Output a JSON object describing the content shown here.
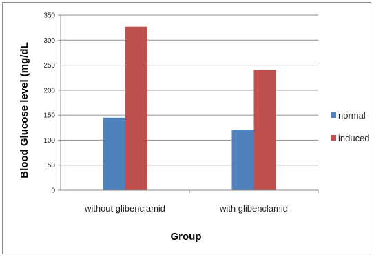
{
  "chart_data": {
    "type": "bar",
    "xlabel": "Group",
    "ylabel": "Blood Glucose  level (mg/dL",
    "ylim": [
      0,
      350
    ],
    "yticks": [
      0,
      50,
      100,
      150,
      200,
      250,
      300,
      350
    ],
    "grid": true,
    "legend_position": "right",
    "categories": [
      "without glibenclamid",
      "with glibenclamid"
    ],
    "series": [
      {
        "name": "normal",
        "values": [
          145,
          121
        ],
        "color": "#4f81bd"
      },
      {
        "name": "induced",
        "values": [
          327,
          240
        ],
        "color": "#c0504d"
      }
    ]
  }
}
